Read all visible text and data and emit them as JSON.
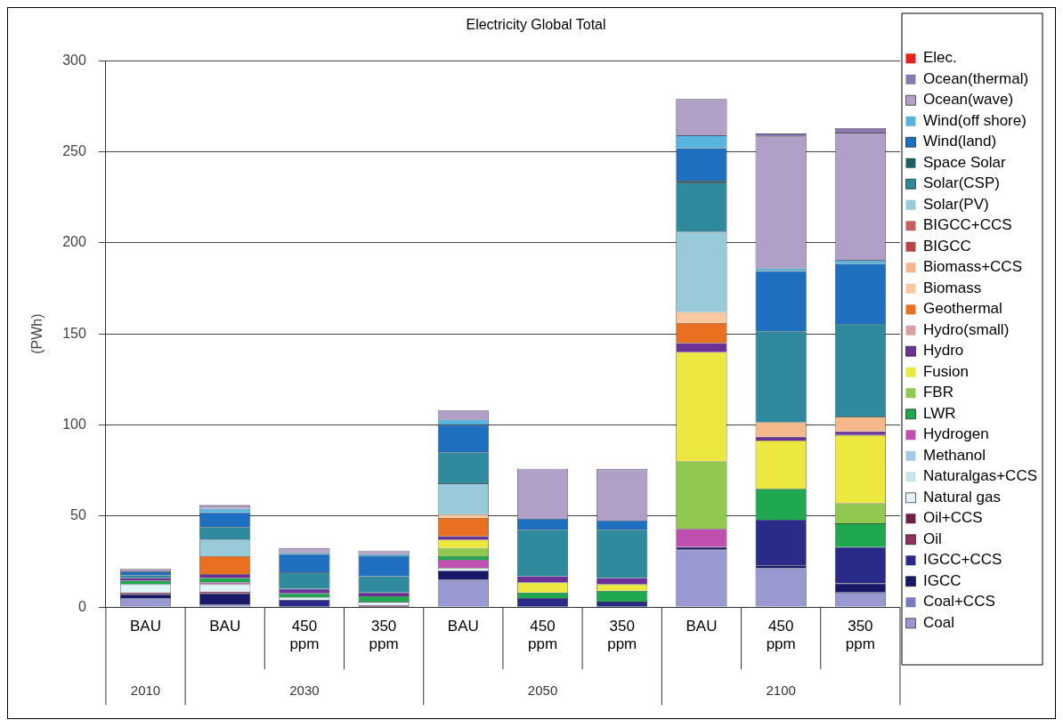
{
  "chart_data": {
    "type": "bar",
    "title": "Electricity Global Total",
    "ylabel": "(PWh)",
    "stacked": true,
    "categories": [
      "BAU",
      "BAU",
      "450 ppm",
      "350 ppm",
      "BAU",
      "450 ppm",
      "350 ppm",
      "BAU",
      "450 ppm",
      "350 ppm"
    ],
    "annotations": [
      "2010",
      "2030",
      "2050",
      "2100"
    ],
    "ylim": [
      0,
      300
    ],
    "yticks": [
      0,
      50,
      100,
      150,
      200,
      250,
      300
    ],
    "grid": "y",
    "legend": "right",
    "series": [
      {
        "name": "Coal",
        "color": "#9a98d0",
        "values": [
          5,
          1.5,
          0,
          0,
          15,
          0,
          0,
          31.5,
          21.5,
          8
        ]
      },
      {
        "name": "Coal+CCS",
        "color": "#7878c0",
        "values": [
          0,
          0,
          0,
          0,
          0,
          0,
          0,
          0,
          0,
          0
        ]
      },
      {
        "name": "IGCC",
        "color": "#181868",
        "values": [
          2,
          6,
          0,
          0,
          5,
          0,
          0,
          1.5,
          1.5,
          5
        ]
      },
      {
        "name": "IGCC+CCS",
        "color": "#2a2a88",
        "values": [
          0,
          0,
          4,
          0,
          0,
          5,
          3,
          0,
          25,
          20
        ]
      },
      {
        "name": "Oil",
        "color": "#903060",
        "values": [
          1,
          1,
          0,
          0,
          0,
          0,
          0,
          0,
          0,
          0
        ]
      },
      {
        "name": "Oil+CCS",
        "color": "#702048",
        "values": [
          0,
          0,
          0,
          1,
          0,
          0,
          0,
          0,
          0,
          0
        ]
      },
      {
        "name": "Natural gas",
        "color": "#e0f4f8",
        "values": [
          4.5,
          4,
          1.5,
          2,
          1.5,
          0,
          0,
          0,
          0,
          0
        ]
      },
      {
        "name": "Naturalgas+CCS",
        "color": "#c8e4ec",
        "values": [
          0,
          0,
          null,
          null,
          0,
          0,
          0,
          0,
          0,
          0
        ]
      },
      {
        "name": "Methanol",
        "color": "#a8c8e8",
        "values": [
          null,
          0,
          0,
          0,
          0,
          0,
          0,
          0,
          0,
          0
        ]
      },
      {
        "name": "Hydrogen",
        "color": "#c050b0",
        "values": [
          0,
          1,
          0,
          0,
          4.5,
          0,
          0,
          10,
          0,
          0
        ]
      },
      {
        "name": "LWR",
        "color": "#20a850",
        "values": [
          2,
          2.5,
          2,
          3,
          2,
          3,
          6,
          0,
          17,
          13
        ]
      },
      {
        "name": "FBR",
        "color": "#90c850",
        "values": [
          0,
          0,
          0,
          0,
          4.5,
          0,
          0,
          37,
          0,
          11
        ]
      },
      {
        "name": "Fusion",
        "color": "#ece840",
        "values": [
          0,
          0,
          0,
          0,
          4.5,
          5.5,
          3.5,
          60,
          26.5,
          37.5
        ]
      },
      {
        "name": "Hydro",
        "color": "#6a3098",
        "values": [
          1.5,
          2,
          2.5,
          2,
          2,
          3.5,
          3.5,
          5,
          2,
          2
        ]
      },
      {
        "name": "Hydro(small)",
        "color": "#d8a0a0",
        "values": [
          0,
          0,
          0,
          0,
          0,
          0,
          0,
          0,
          0,
          0
        ]
      },
      {
        "name": "Geothermal",
        "color": "#e87020",
        "values": [
          0,
          10,
          0,
          0,
          10,
          0,
          0,
          11,
          0,
          0
        ]
      },
      {
        "name": "Biomass",
        "color": "#f8c8a0",
        "values": [
          0,
          0,
          0,
          0,
          2,
          0,
          0,
          6,
          0,
          0
        ]
      },
      {
        "name": "Biomass+CCS",
        "color": "#f4b88a",
        "values": [
          0,
          0,
          0,
          0,
          0,
          0,
          0,
          0,
          8,
          8
        ]
      },
      {
        "name": "BIGCC",
        "color": "#b84444",
        "values": [
          0,
          0,
          0,
          0,
          0,
          0,
          0,
          0,
          0,
          0
        ]
      },
      {
        "name": "BIGCC+CCS",
        "color": "#c86060",
        "values": [
          0,
          0,
          0,
          0,
          0,
          0,
          0,
          0,
          0,
          0
        ]
      },
      {
        "name": "Solar(PV)",
        "color": "#98cada",
        "values": [
          0,
          9,
          0,
          0,
          17,
          0,
          0,
          44,
          0,
          0
        ]
      },
      {
        "name": "Solar(CSP)",
        "color": "#2e8a9c",
        "values": [
          1.5,
          7,
          9,
          9,
          17,
          25.5,
          26.5,
          27,
          50,
          51
        ]
      },
      {
        "name": "Space Solar",
        "color": "#1e5e62",
        "values": [
          0,
          0,
          0,
          0,
          0,
          0,
          0,
          1,
          0,
          0
        ]
      },
      {
        "name": "Wind(land)",
        "color": "#1f6fc0",
        "values": [
          2,
          8,
          10,
          11,
          15,
          6,
          5,
          18,
          33,
          33
        ]
      },
      {
        "name": "Wind(off shore)",
        "color": "#5ab4e0",
        "values": [
          0,
          2,
          1,
          1,
          3,
          0,
          0,
          7,
          1.5,
          2
        ]
      },
      {
        "name": "Ocean(wave)",
        "color": "#b0a0c8",
        "values": [
          1.5,
          1,
          1.5,
          2,
          5,
          27.5,
          27.5,
          20,
          72.5,
          70
        ]
      },
      {
        "name": "Ocean(thermal)",
        "color": "#8a78b0",
        "values": [
          0,
          1,
          1,
          0,
          0,
          0,
          1,
          0,
          1.5,
          2.5
        ]
      },
      {
        "name": "Elec.",
        "color": "#e8201e",
        "values": [
          0,
          0,
          0,
          0,
          0,
          0,
          0,
          0,
          0,
          0
        ]
      }
    ]
  }
}
